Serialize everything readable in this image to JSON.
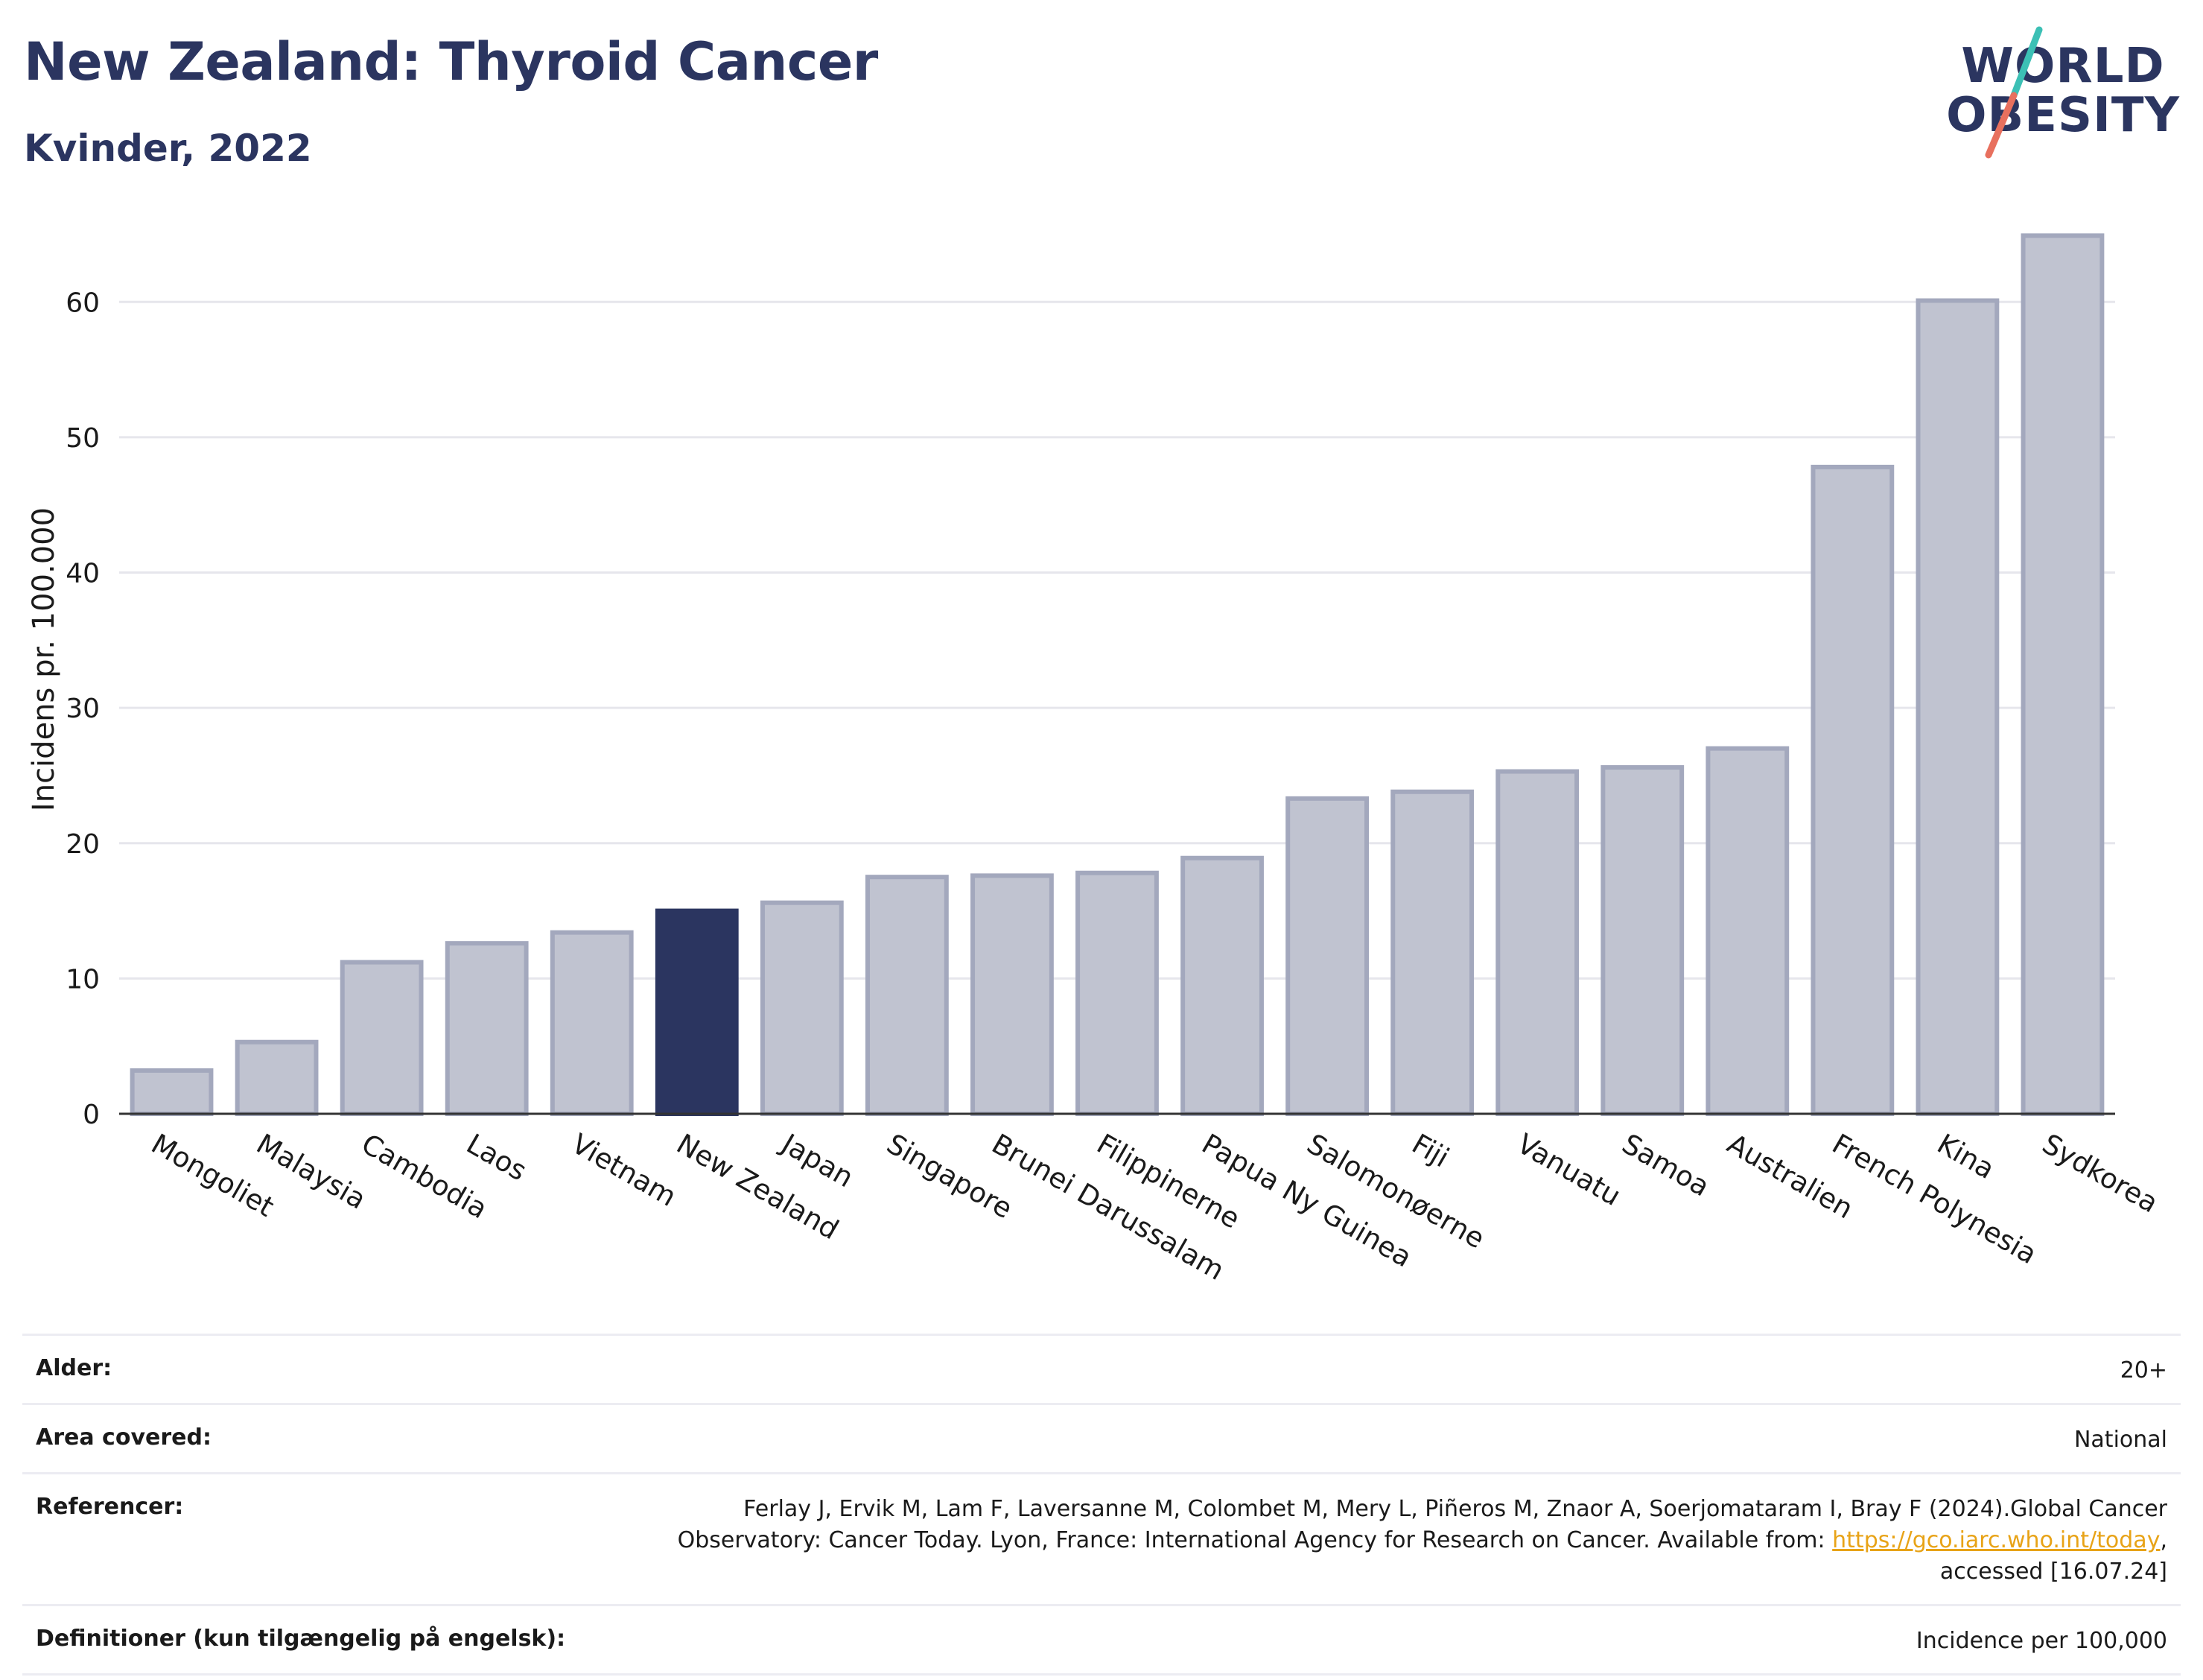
{
  "header": {
    "title": "New Zealand: Thyroid Cancer",
    "subtitle": "Kvinder, 2022"
  },
  "logo": {
    "line1": "WORLD",
    "line2": "OBESITY",
    "slash_colors": [
      "#3cc0b5",
      "#e8705e"
    ]
  },
  "chart_data": {
    "type": "bar",
    "title": "",
    "xlabel": "",
    "ylabel": "Incidens pr. 100.000",
    "ylim": [
      0,
      68
    ],
    "yticks": [
      0,
      10,
      20,
      30,
      40,
      50,
      60
    ],
    "grid": true,
    "highlight": "New Zealand",
    "colors": {
      "bar": "#c0c3d0",
      "bar_edge": "#a3a8bd",
      "highlight": "#2b3560",
      "grid": "#e6e6ec",
      "axis": "#333333"
    },
    "categories": [
      "Mongoliet",
      "Malaysia",
      "Cambodia",
      "Laos",
      "Vietnam",
      "New Zealand",
      "Japan",
      "Singapore",
      "Brunei Darussalam",
      "Filippinerne",
      "Papua Ny Guinea",
      "Salomonøerne",
      "Fiji",
      "Vanuatu",
      "Samoa",
      "Australien",
      "French Polynesia",
      "Kina",
      "Sydkorea"
    ],
    "values": [
      3.2,
      5.3,
      11.2,
      12.6,
      13.4,
      15.0,
      15.6,
      17.5,
      17.6,
      17.8,
      18.9,
      23.3,
      23.8,
      25.3,
      25.6,
      27.0,
      47.8,
      60.1,
      64.9
    ]
  },
  "meta": {
    "rows": [
      {
        "label": "Alder:",
        "value": "20+"
      },
      {
        "label": "Area covered:",
        "value": "National"
      },
      {
        "label": "Referencer:",
        "value_line1": "Ferlay J, Ervik M, Lam F, Laversanne M, Colombet M, Mery L, Piñeros M, Znaor A, Soerjomataram I, Bray F (2024).Global Cancer",
        "value_line2_pre": "Observatory: Cancer Today. Lyon, France: International Agency for Research on Cancer. Available from: ",
        "link": "https://gco.iarc.who.int/today",
        "value_line2_post": ",",
        "value_line3": "accessed [16.07.24]"
      },
      {
        "label": "Definitioner (kun tilgængelig på engelsk):",
        "value": "Incidence per 100,000"
      }
    ]
  }
}
